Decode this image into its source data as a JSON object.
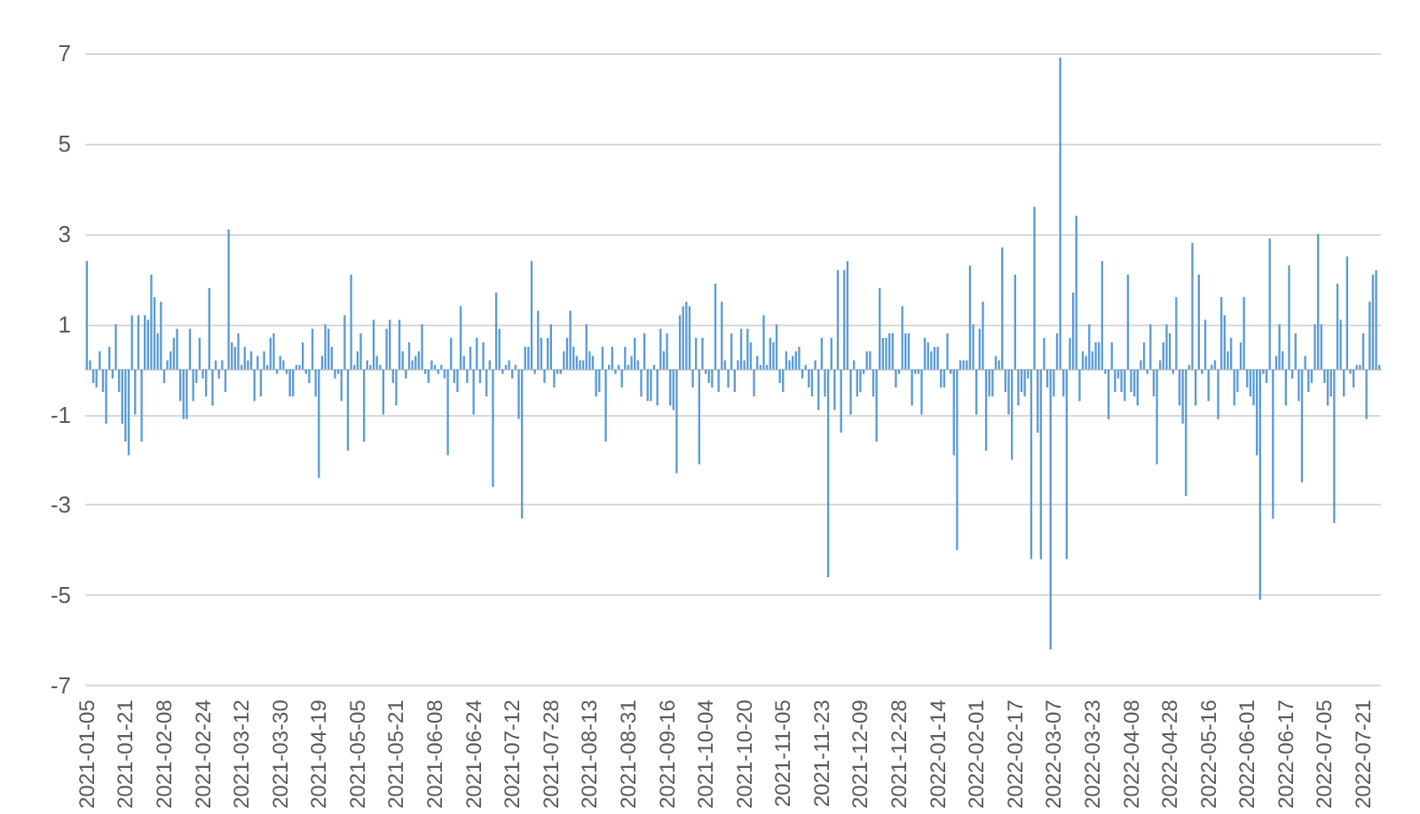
{
  "chart_data": {
    "type": "bar",
    "color": "#5b9bd5",
    "grid": "y",
    "ylim": [
      -7,
      7
    ],
    "yticks": [
      -7,
      -5,
      -3,
      -1,
      1,
      3,
      5,
      7
    ],
    "categories": [
      "2021-01-05",
      null,
      null,
      null,
      null,
      null,
      null,
      null,
      null,
      null,
      null,
      null,
      "2021-01-21",
      null,
      null,
      null,
      null,
      null,
      null,
      null,
      null,
      null,
      null,
      null,
      "2021-02-08",
      null,
      null,
      null,
      null,
      null,
      null,
      null,
      null,
      null,
      null,
      null,
      "2021-02-24",
      null,
      null,
      null,
      null,
      null,
      null,
      null,
      null,
      null,
      null,
      null,
      "2021-03-12",
      null,
      null,
      null,
      null,
      null,
      null,
      null,
      null,
      null,
      null,
      null,
      "2021-03-30",
      null,
      null,
      null,
      null,
      null,
      null,
      null,
      null,
      null,
      null,
      null,
      "2021-04-19",
      null,
      null,
      null,
      null,
      null,
      null,
      null,
      null,
      null,
      null,
      null,
      "2021-05-05",
      null,
      null,
      null,
      null,
      null,
      null,
      null,
      null,
      null,
      null,
      null,
      "2021-05-21",
      null,
      null,
      null,
      null,
      null,
      null,
      null,
      null,
      null,
      null,
      null,
      "2021-06-08",
      null,
      null,
      null,
      null,
      null,
      null,
      null,
      null,
      null,
      null,
      null,
      "2021-06-24",
      null,
      null,
      null,
      null,
      null,
      null,
      null,
      null,
      null,
      null,
      null,
      "2021-07-12",
      null,
      null,
      null,
      null,
      null,
      null,
      null,
      null,
      null,
      null,
      null,
      "2021-07-28",
      null,
      null,
      null,
      null,
      null,
      null,
      null,
      null,
      null,
      null,
      null,
      "2021-08-13",
      null,
      null,
      null,
      null,
      null,
      null,
      null,
      null,
      null,
      null,
      null,
      "2021-08-31",
      null,
      null,
      null,
      null,
      null,
      null,
      null,
      null,
      null,
      null,
      null,
      "2021-09-16",
      null,
      null,
      null,
      null,
      null,
      null,
      null,
      null,
      null,
      null,
      null,
      "2021-10-04",
      null,
      null,
      null,
      null,
      null,
      null,
      null,
      null,
      null,
      null,
      null,
      "2021-10-20",
      null,
      null,
      null,
      null,
      null,
      null,
      null,
      null,
      null,
      null,
      null,
      "2021-11-05",
      null,
      null,
      null,
      null,
      null,
      null,
      null,
      null,
      null,
      null,
      null,
      "2021-11-23",
      null,
      null,
      null,
      null,
      null,
      null,
      null,
      null,
      null,
      null,
      null,
      "2021-12-09",
      null,
      null,
      null,
      null,
      null,
      null,
      null,
      null,
      null,
      null,
      null,
      "2021-12-28",
      null,
      null,
      null,
      null,
      null,
      null,
      null,
      null,
      null,
      null,
      null,
      "2022-01-14",
      null,
      null,
      null,
      null,
      null,
      null,
      null,
      null,
      null,
      null,
      null,
      "2022-02-01",
      null,
      null,
      null,
      null,
      null,
      null,
      null,
      null,
      null,
      null,
      null,
      "2022-02-17",
      null,
      null,
      null,
      null,
      null,
      null,
      null,
      null,
      null,
      null,
      null,
      "2022-03-07",
      null,
      null,
      null,
      null,
      null,
      null,
      null,
      null,
      null,
      null,
      null,
      "2022-03-23",
      null,
      null,
      null,
      null,
      null,
      null,
      null,
      null,
      null,
      null,
      null,
      "2022-04-08",
      null,
      null,
      null,
      null,
      null,
      null,
      null,
      null,
      null,
      null,
      null,
      "2022-04-28",
      null,
      null,
      null,
      null,
      null,
      null,
      null,
      null,
      null,
      null,
      null,
      "2022-05-16",
      null,
      null,
      null,
      null,
      null,
      null,
      null,
      null,
      null,
      null,
      null,
      "2022-06-01",
      null,
      null,
      null,
      null,
      null,
      null,
      null,
      null,
      null,
      null,
      null,
      "2022-06-17",
      null,
      null,
      null,
      null,
      null,
      null,
      null,
      null,
      null,
      null,
      null,
      "2022-07-05",
      null,
      null,
      null,
      null,
      null,
      null,
      null,
      null,
      null,
      null,
      null,
      "2022-07-21",
      null,
      null,
      null,
      null,
      null
    ],
    "values": [
      2.4,
      0.2,
      -0.3,
      -0.4,
      0.4,
      -0.5,
      -1.2,
      0.5,
      -0.2,
      1.0,
      -0.5,
      -1.2,
      -1.6,
      -1.9,
      1.2,
      -1.0,
      1.2,
      -1.6,
      1.2,
      1.1,
      2.1,
      1.6,
      0.8,
      1.5,
      -0.3,
      0.2,
      0.4,
      0.7,
      0.9,
      -0.7,
      -1.1,
      -1.1,
      0.9,
      -0.7,
      -0.3,
      0.7,
      -0.2,
      -0.6,
      1.8,
      -0.8,
      0.2,
      -0.2,
      0.2,
      -0.5,
      3.1,
      0.6,
      0.5,
      0.8,
      0.1,
      0.5,
      0.2,
      0.4,
      -0.7,
      0.3,
      -0.6,
      0.4,
      0.1,
      0.7,
      0.8,
      -0.1,
      0.3,
      0.2,
      -0.1,
      -0.6,
      -0.6,
      0.1,
      0.1,
      0.6,
      -0.1,
      -0.3,
      0.9,
      -0.6,
      -2.4,
      0.3,
      1.0,
      0.9,
      0.5,
      -0.2,
      -0.1,
      -0.7,
      1.2,
      -1.8,
      2.1,
      0.1,
      0.4,
      0.8,
      -1.6,
      0.2,
      0.1,
      1.1,
      0.3,
      0.1,
      -1.0,
      0.9,
      1.1,
      -0.3,
      -0.8,
      1.1,
      0.4,
      -0.2,
      0.6,
      0.2,
      0.3,
      0.4,
      1.0,
      -0.1,
      -0.3,
      0.2,
      0.1,
      -0.1,
      0.1,
      -0.2,
      -1.9,
      0.7,
      -0.3,
      -0.5,
      1.4,
      0.3,
      -0.3,
      0.5,
      -1.0,
      0.7,
      -0.3,
      0.6,
      -0.6,
      0.2,
      -2.6,
      1.7,
      0.9,
      -0.1,
      0.1,
      0.2,
      -0.2,
      0.1,
      -1.1,
      -3.3,
      0.5,
      0.5,
      2.4,
      -0.1,
      1.3,
      0.7,
      -0.3,
      0.7,
      1.0,
      -0.4,
      -0.1,
      -0.1,
      0.4,
      0.7,
      1.3,
      0.5,
      0.3,
      0.2,
      0.2,
      1.0,
      0.4,
      0.3,
      -0.6,
      -0.5,
      0.5,
      -1.6,
      0.1,
      0.5,
      -0.1,
      0.1,
      -0.4,
      0.5,
      0.1,
      0.3,
      0.7,
      0.2,
      -0.6,
      0.8,
      -0.7,
      -0.7,
      0.1,
      -0.8,
      0.9,
      0.4,
      0.8,
      -0.8,
      -0.9,
      -2.3,
      1.2,
      1.4,
      1.5,
      1.4,
      -0.4,
      0.7,
      -2.1,
      0.7,
      -0.1,
      -0.3,
      -0.4,
      1.9,
      -0.5,
      1.5,
      0.2,
      -0.4,
      0.8,
      -0.5,
      0.2,
      0.9,
      0.2,
      0.9,
      0.6,
      -0.6,
      0.3,
      0.1,
      1.2,
      0.1,
      0.7,
      0.6,
      1.0,
      -0.3,
      -0.5,
      0.4,
      0.2,
      0.3,
      0.4,
      0.5,
      -0.2,
      0.1,
      -0.4,
      -0.6,
      0.2,
      -0.9,
      0.7,
      -0.6,
      -4.6,
      0.7,
      -0.9,
      2.2,
      -1.4,
      2.2,
      2.4,
      -1.0,
      0.2,
      -0.6,
      -0.5,
      -0.1,
      0.4,
      0.4,
      -0.6,
      -1.6,
      1.8,
      0.7,
      0.7,
      0.8,
      0.8,
      -0.4,
      -0.1,
      1.4,
      0.8,
      0.8,
      -0.8,
      -0.1,
      -0.1,
      -1.0,
      0.7,
      0.6,
      0.4,
      0.5,
      0.5,
      -0.4,
      -0.4,
      0.8,
      -0.1,
      -1.9,
      -4.0,
      0.2,
      0.2,
      0.2,
      2.3,
      1.0,
      -1.0,
      0.9,
      1.5,
      -1.8,
      -0.6,
      -0.6,
      0.3,
      0.2,
      2.7,
      -0.5,
      -1.0,
      -2.0,
      2.1,
      -0.8,
      -0.5,
      -0.6,
      -0.2,
      -4.2,
      3.6,
      -1.4,
      -4.2,
      0.7,
      -0.4,
      -6.2,
      -0.6,
      0.8,
      6.9,
      -0.6,
      -4.2,
      0.7,
      1.7,
      3.4,
      -0.7,
      0.4,
      0.3,
      1.0,
      0.4,
      0.6,
      0.6,
      2.4,
      -0.1,
      -1.1,
      0.6,
      -0.5,
      -0.2,
      -0.5,
      -0.7,
      2.1,
      -0.5,
      -0.6,
      -0.8,
      0.2,
      0.6,
      -0.1,
      1.0,
      -0.6,
      -2.1,
      0.2,
      0.6,
      1.0,
      0.8,
      -0.1,
      1.6,
      -0.8,
      -1.2,
      -2.8,
      0.1,
      2.8,
      -0.8,
      2.1,
      -0.1,
      1.1,
      -0.7,
      0.1,
      0.2,
      -1.1,
      1.6,
      1.2,
      0.4,
      0.7,
      -0.8,
      -0.5,
      0.6,
      1.6,
      -0.4,
      -0.6,
      -0.8,
      -1.9,
      -5.1,
      -0.1,
      -0.3,
      2.9,
      -3.3,
      0.3,
      1.0,
      0.4,
      -0.8,
      2.3,
      -0.2,
      0.8,
      -0.7,
      -2.5,
      0.3,
      -0.5,
      -0.3,
      1.0,
      3.0,
      1.0,
      -0.3,
      -0.8,
      -0.6,
      -3.4,
      1.9,
      1.1,
      -0.6,
      2.5,
      -0.1,
      -0.4,
      0.1,
      0.1,
      0.8,
      -1.1,
      1.5,
      2.1,
      2.2,
      0.1
    ]
  }
}
